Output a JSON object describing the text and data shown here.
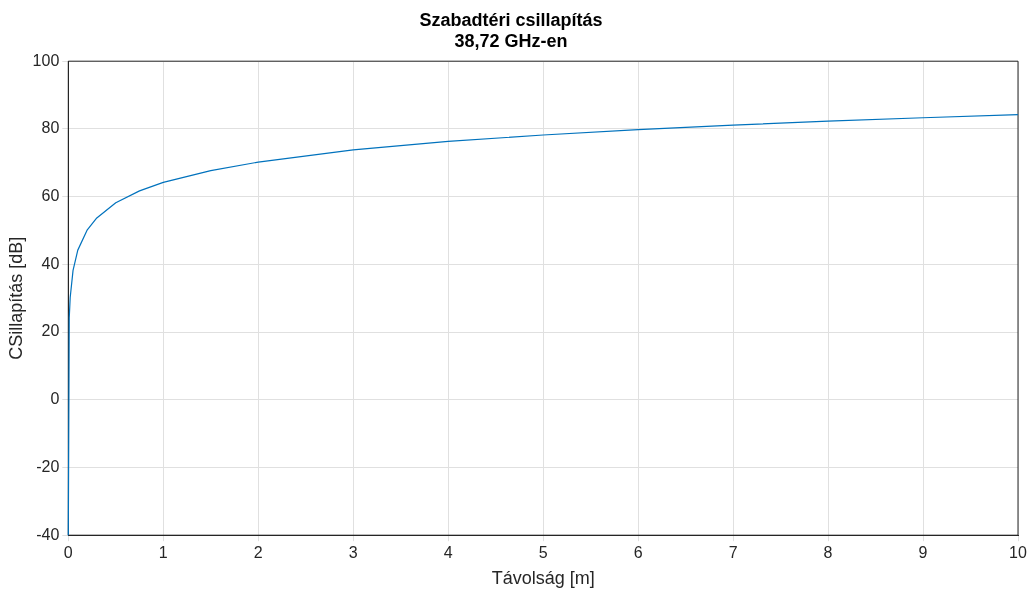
{
  "chart_data": {
    "type": "line",
    "title": "Szabadtéri csillapítás\n38,72 GHz-en",
    "xlabel": "Távolság [m]",
    "ylabel": "CSillapítás [dB]",
    "x": [
      0,
      0.01,
      0.02,
      0.05,
      0.1,
      0.2,
      0.3,
      0.5,
      0.75,
      1,
      1.5,
      2,
      3,
      4,
      5,
      6,
      7,
      8,
      9,
      10
    ],
    "series": [
      {
        "color": "#0072bd",
        "values": [
          -40,
          24.2,
          30.2,
          38.2,
          44.2,
          50.2,
          53.7,
          58.2,
          61.7,
          64.2,
          67.7,
          70.2,
          73.8,
          76.3,
          78.2,
          79.8,
          81.1,
          82.3,
          83.3,
          84.2
        ]
      }
    ],
    "xlim": [
      0,
      10
    ],
    "xticks": [
      0,
      1,
      2,
      3,
      4,
      5,
      6,
      7,
      8,
      9,
      10
    ],
    "ylim": [
      -40,
      100
    ],
    "yticks": [
      -40,
      -20,
      0,
      20,
      40,
      60,
      80,
      100
    ],
    "grid": true,
    "legend": false,
    "marker": "none",
    "line_style": "solid"
  }
}
